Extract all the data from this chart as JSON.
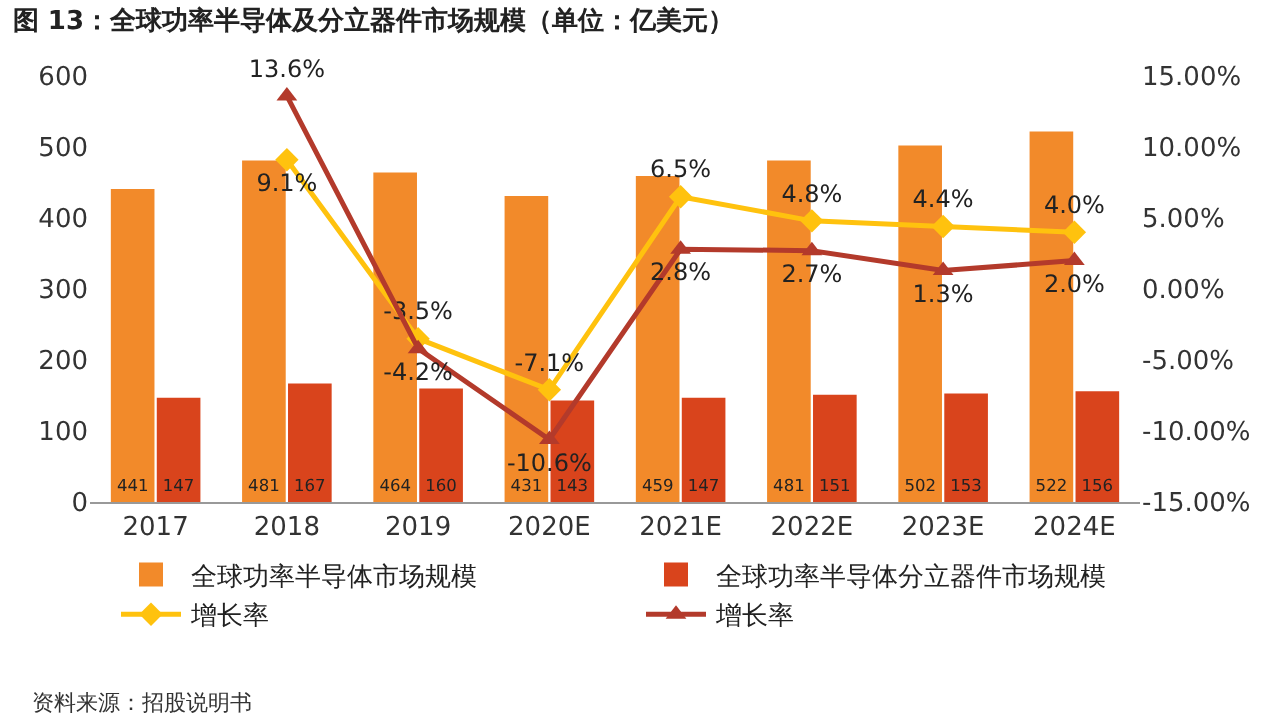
{
  "chart_data": {
    "type": "bar",
    "title": "图 13：全球功率半导体及分立器件市场规模（单位：亿美元）",
    "categories": [
      "2017",
      "2018",
      "2019",
      "2020E",
      "2021E",
      "2022E",
      "2023E",
      "2024E"
    ],
    "series": [
      {
        "name": "全球功率半导体市场规模",
        "color": "#f28a2a",
        "values": [
          441,
          481,
          464,
          431,
          459,
          481,
          502,
          522
        ],
        "value_labels": [
          "441",
          "481",
          "464",
          "431",
          "459",
          "481",
          "502",
          "522"
        ]
      },
      {
        "name": "全球功率半导体分立器件市场规模",
        "color": "#d9441c",
        "values": [
          147,
          167,
          160,
          143,
          147,
          151,
          153,
          156
        ],
        "value_labels": [
          "147",
          "167",
          "160",
          "143",
          "147",
          "151",
          "153",
          "156"
        ]
      },
      {
        "name": "增长率",
        "type": "line",
        "axis": "y2",
        "color": "#ffc20e",
        "marker": "diamond",
        "values": [
          null,
          9.1,
          -3.5,
          -7.1,
          6.5,
          4.8,
          4.4,
          4.0
        ],
        "value_labels": [
          null,
          "9.1%",
          "-3.5%",
          "-7.1%",
          "6.5%",
          "4.8%",
          "4.4%",
          "4.0%"
        ]
      },
      {
        "name": "增长率",
        "type": "line",
        "axis": "y2",
        "color": "#b33a2b",
        "marker": "triangle",
        "values": [
          null,
          13.6,
          -4.2,
          -10.6,
          2.8,
          2.7,
          1.3,
          2.0
        ],
        "value_labels": [
          null,
          "13.6%",
          "-4.2%",
          "-10.6%",
          "2.8%",
          "2.7%",
          "1.3%",
          "2.0%"
        ]
      }
    ],
    "ylim": [
      0,
      600
    ],
    "yticks": [
      0,
      100,
      200,
      300,
      400,
      500,
      600
    ],
    "y2lim": [
      -15,
      15
    ],
    "y2ticks": [
      {
        "value": -15,
        "label": "-15.00%"
      },
      {
        "value": -10,
        "label": "-10.00%"
      },
      {
        "value": -5,
        "label": "-5.00%"
      },
      {
        "value": 0,
        "label": "0.00%"
      },
      {
        "value": 5,
        "label": "5.00%"
      },
      {
        "value": 10,
        "label": "10.00%"
      },
      {
        "value": 15,
        "label": "15.00%"
      }
    ],
    "legend": "bottom",
    "grid": false,
    "annotations": [
      "资料来源：招股说明书"
    ]
  }
}
